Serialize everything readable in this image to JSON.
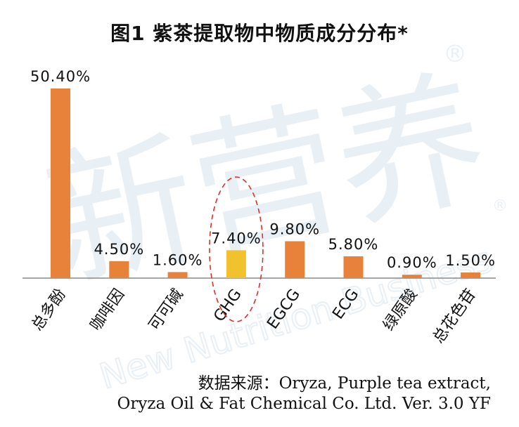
{
  "chart_data": {
    "type": "bar",
    "title": "图1 紫茶提取物中物质成分分布*",
    "categories": [
      "总多酚",
      "咖啡因",
      "可可碱",
      "GHG",
      "EGCG",
      "ECG",
      "绿原酸",
      "总花色苷"
    ],
    "values": [
      50.4,
      4.5,
      1.6,
      7.4,
      9.8,
      5.8,
      0.9,
      1.5
    ],
    "value_labels": [
      "50.40%",
      "4.50%",
      "1.60%",
      "7.40%",
      "9.80%",
      "5.80%",
      "0.90%",
      "1.50%"
    ],
    "unit": "%",
    "ylim": [
      0,
      52
    ],
    "grid": false,
    "legend": "none",
    "highlighted_category": "GHG",
    "colors": {
      "default_bar": "#E8823A",
      "highlight_bar": "#F2C12E",
      "highlight_ellipse": "#D9322B",
      "axis": "#888888",
      "watermark": "#D7E4F0"
    }
  },
  "source": {
    "line1": "数据来源：Oryza, Purple tea extract,",
    "line2": "Oryza Oil & Fat Chemical Co. Ltd. Ver. 3.0 YF"
  },
  "watermark": {
    "main": "新营养",
    "sub": "New Nutrition Business",
    "mark": "®"
  }
}
